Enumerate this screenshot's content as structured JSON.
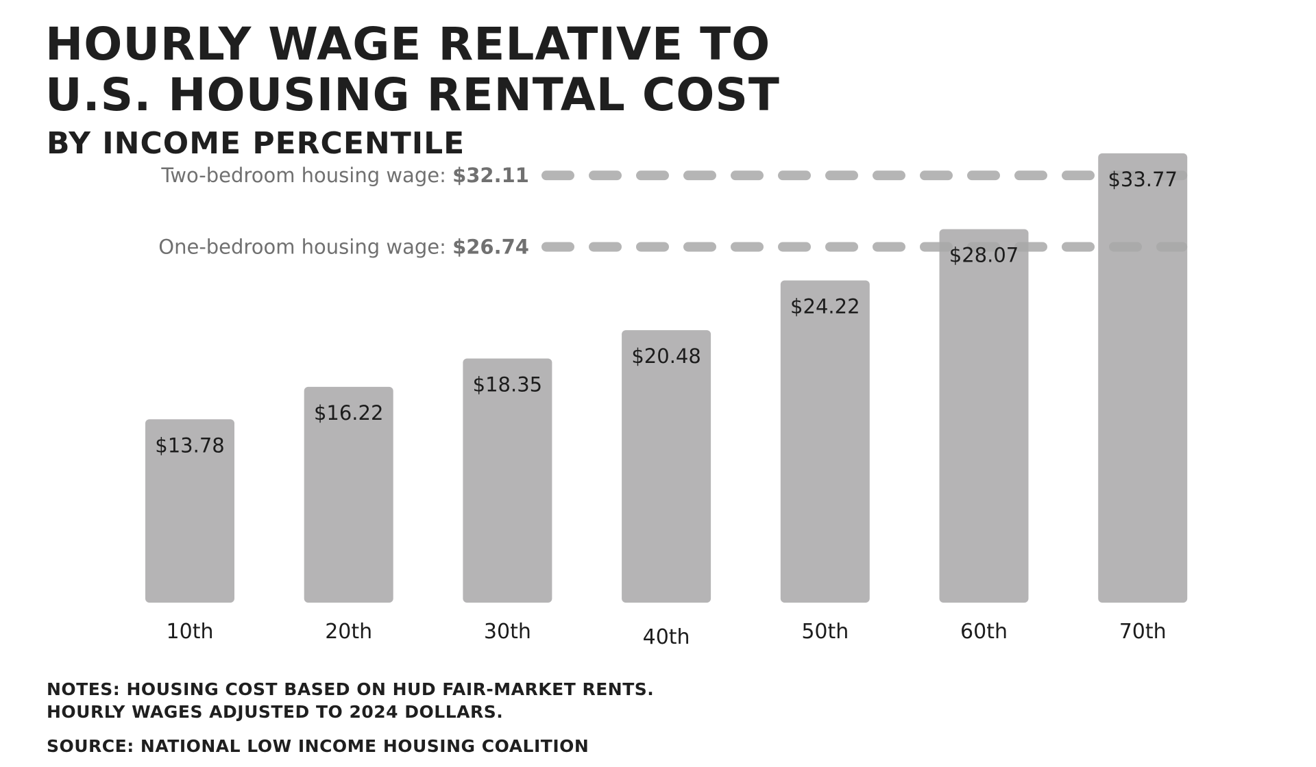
{
  "title_lines": [
    "Hourly wage relative to",
    "U.S. housing rental cost"
  ],
  "subtitle": "By income percentile",
  "chart_data": {
    "type": "bar",
    "categories": [
      "10th",
      "20th",
      "30th",
      "40th",
      "50th",
      "60th",
      "70th"
    ],
    "values": [
      13.78,
      16.22,
      18.35,
      20.48,
      24.22,
      28.07,
      33.77
    ],
    "value_labels": [
      "$13.78",
      "$16.22",
      "$18.35",
      "$20.48",
      "$24.22",
      "$28.07",
      "$33.77"
    ],
    "ylim": [
      0,
      35
    ],
    "grid": false,
    "bar_color": "#b5b4b5",
    "reference_lines": [
      {
        "label": "Two-bedroom housing wage: ",
        "value_text": "$32.11",
        "value": 32.11
      },
      {
        "label": "One-bedroom housing wage: ",
        "value_text": "$26.74",
        "value": 26.74
      }
    ],
    "reference_line_color": "#a9a9a9"
  },
  "notes": [
    "Notes: Housing cost based on HUD fair-market rents.",
    "Hourly wages adjusted to 2024 dollars."
  ],
  "source": "Source: National Low Income Housing Coalition"
}
